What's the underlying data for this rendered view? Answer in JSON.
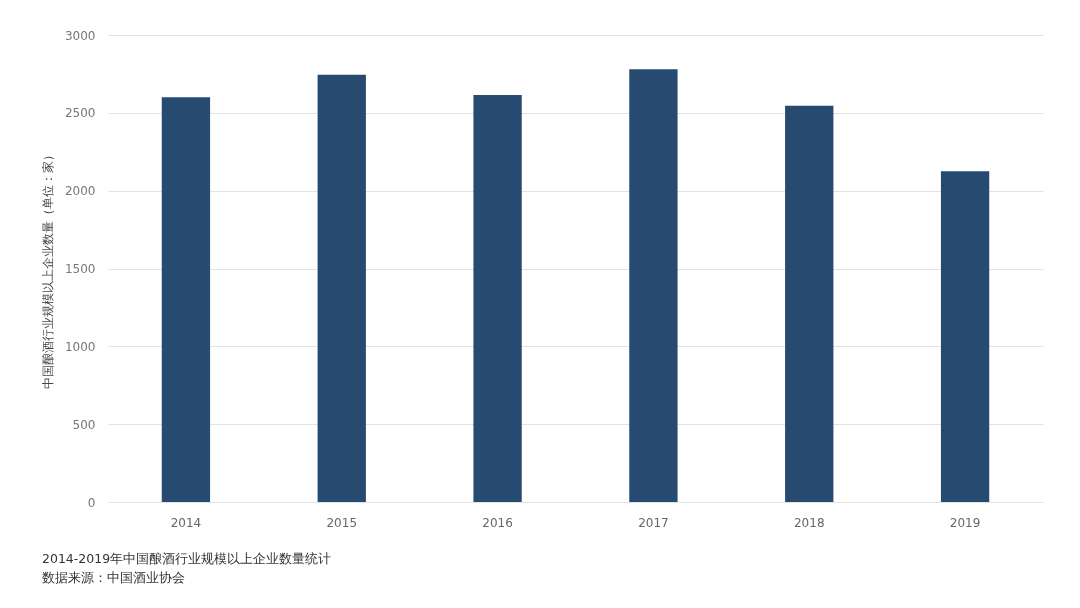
{
  "chart_data": {
    "type": "bar",
    "categories": [
      "2014",
      "2015",
      "2016",
      "2017",
      "2018",
      "2019"
    ],
    "values": [
      2600,
      2745,
      2615,
      2780,
      2545,
      2125
    ],
    "color": "#264a70",
    "ylabel": "中国酿酒行业规模以上企业数量（单位：家）",
    "ylim": [
      0,
      3000
    ],
    "yticks": [
      0,
      500,
      1000,
      1500,
      2000,
      2500,
      3000
    ],
    "grid": "y",
    "annotations": [
      "2014-2019年中国酿酒行业规模以上企业数量统计",
      "数据来源：中国酒业协会"
    ]
  }
}
